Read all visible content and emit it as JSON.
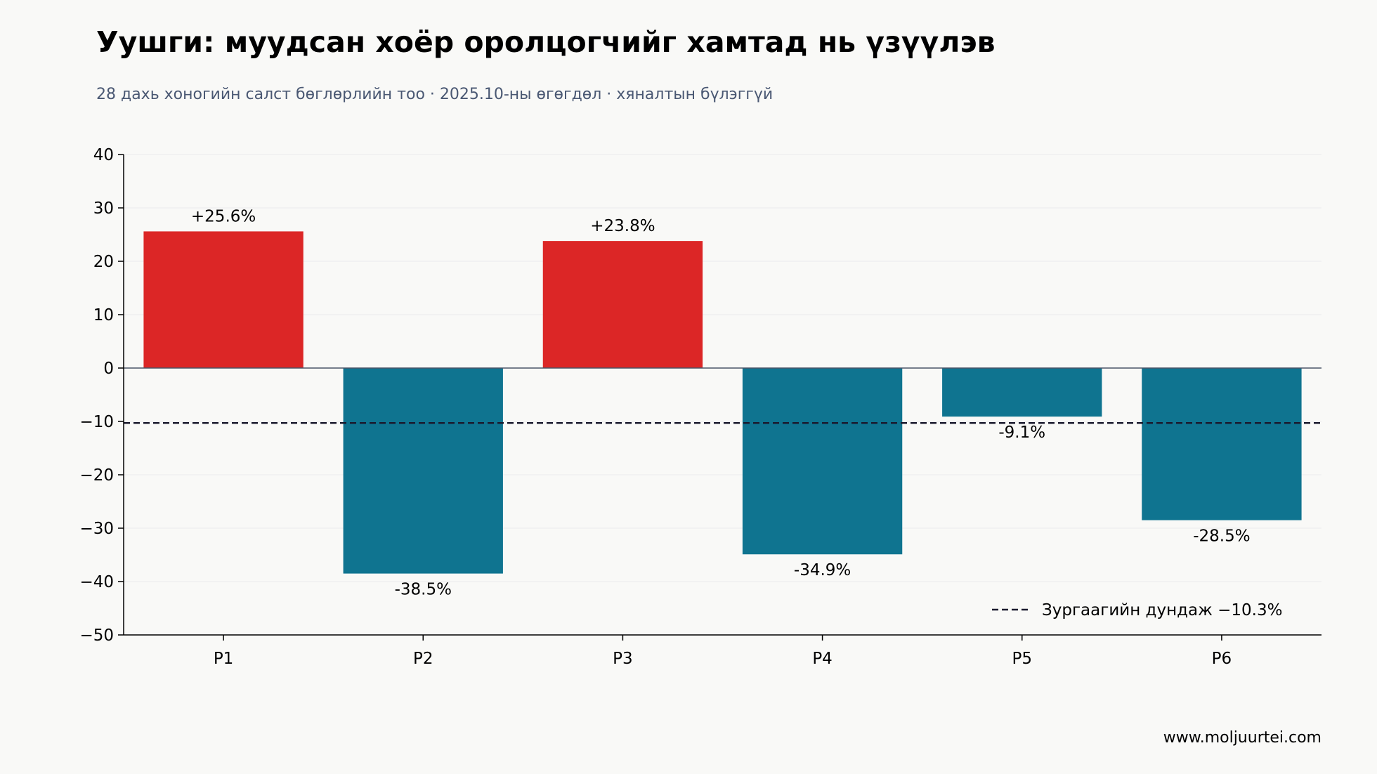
{
  "title": "Уушги: муудсан хоёр оролцогчийг хамтад нь үзүүлэв",
  "subtitle": "28 дахь хоногийн салст бөглөрлийн тоо · 2025.10-ны өгөгдөл · хяналтын бүлэггүй",
  "source": "www.moljuurtei.com",
  "colors": {
    "positive": "#dc2626",
    "negative": "#0f7490",
    "mean_line": "#1a1a2e",
    "axis": "#000000",
    "zero_line": "#4a5568",
    "grid": "#ececec"
  },
  "chart_data": {
    "type": "bar",
    "categories": [
      "P1",
      "P2",
      "P3",
      "P4",
      "P5",
      "P6"
    ],
    "values": [
      25.6,
      -38.5,
      23.8,
      -34.9,
      -9.1,
      -28.5
    ],
    "value_labels": [
      "+25.6%",
      "-38.5%",
      "+23.8%",
      "-34.9%",
      "-9.1%",
      "-28.5%"
    ],
    "ylim": [
      -50,
      40
    ],
    "yticks": [
      40,
      30,
      20,
      10,
      0,
      -10,
      -20,
      -30,
      -40,
      -50
    ],
    "ytick_labels": [
      "40",
      "30",
      "20",
      "10",
      "0",
      "−10",
      "−20",
      "−30",
      "−40",
      "−50"
    ],
    "grid": true,
    "xlabel": "",
    "ylabel": "",
    "reference_line": {
      "value": -10.3,
      "style": "dashed",
      "label": "Зургаагийн дундаж −10.3%"
    },
    "legend_position": "bottom-right"
  }
}
